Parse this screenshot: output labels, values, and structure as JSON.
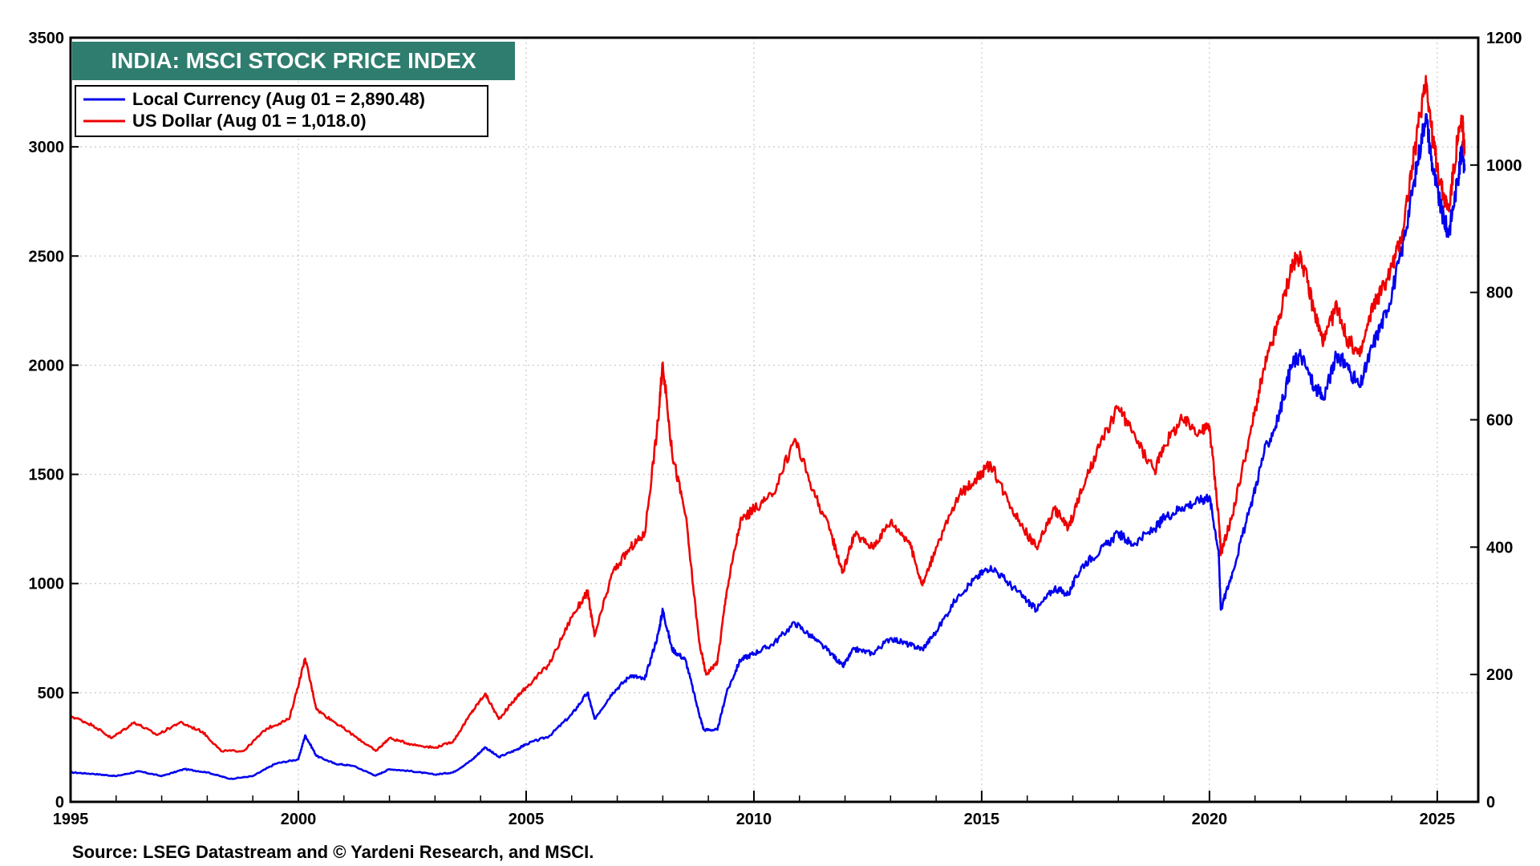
{
  "chart_data": {
    "type": "line",
    "title": "INDIA: MSCI STOCK PRICE INDEX",
    "source": "Source: LSEG Datastream and © Yardeni Research, and MSCI.",
    "title_box_color": "#2e7d6e",
    "x_axis": {
      "range": [
        1995,
        2025.9
      ],
      "ticks": [
        "1995",
        "2000",
        "2005",
        "2010",
        "2015",
        "2020",
        "2025"
      ]
    },
    "y_left": {
      "range": [
        0,
        3500
      ],
      "ticks": [
        "0",
        "500",
        "1000",
        "1500",
        "2000",
        "2500",
        "3000",
        "3500"
      ]
    },
    "y_right": {
      "range": [
        0,
        1200
      ],
      "ticks": [
        "0",
        "200",
        "400",
        "600",
        "800",
        "1000",
        "1200"
      ]
    },
    "grid": true,
    "legend_position": "top-left",
    "series": [
      {
        "name": "Local Currency (Aug 01 = 2,890.48)",
        "axis": "left",
        "color": "#0000ee",
        "points": [
          [
            1995.0,
            135
          ],
          [
            1995.5,
            128
          ],
          [
            1996.0,
            118
          ],
          [
            1996.5,
            140
          ],
          [
            1997.0,
            118
          ],
          [
            1997.5,
            150
          ],
          [
            1998.0,
            135
          ],
          [
            1998.5,
            105
          ],
          [
            1999.0,
            118
          ],
          [
            1999.5,
            175
          ],
          [
            2000.0,
            195
          ],
          [
            2000.15,
            305
          ],
          [
            2000.4,
            210
          ],
          [
            2000.8,
            175
          ],
          [
            2001.2,
            165
          ],
          [
            2001.7,
            120
          ],
          [
            2002.0,
            150
          ],
          [
            2002.5,
            140
          ],
          [
            2003.0,
            125
          ],
          [
            2003.4,
            135
          ],
          [
            2003.8,
            190
          ],
          [
            2004.1,
            250
          ],
          [
            2004.4,
            205
          ],
          [
            2004.8,
            240
          ],
          [
            2005.0,
            265
          ],
          [
            2005.5,
            300
          ],
          [
            2006.0,
            400
          ],
          [
            2006.35,
            500
          ],
          [
            2006.5,
            380
          ],
          [
            2006.9,
            500
          ],
          [
            2007.3,
            580
          ],
          [
            2007.6,
            560
          ],
          [
            2007.9,
            770
          ],
          [
            2008.0,
            880
          ],
          [
            2008.2,
            700
          ],
          [
            2008.5,
            650
          ],
          [
            2008.8,
            400
          ],
          [
            2008.9,
            330
          ],
          [
            2009.2,
            330
          ],
          [
            2009.4,
            500
          ],
          [
            2009.7,
            650
          ],
          [
            2010.0,
            680
          ],
          [
            2010.4,
            720
          ],
          [
            2010.9,
            820
          ],
          [
            2011.3,
            750
          ],
          [
            2011.7,
            680
          ],
          [
            2011.95,
            620
          ],
          [
            2012.2,
            700
          ],
          [
            2012.6,
            680
          ],
          [
            2013.0,
            750
          ],
          [
            2013.4,
            720
          ],
          [
            2013.7,
            700
          ],
          [
            2014.0,
            780
          ],
          [
            2014.5,
            950
          ],
          [
            2014.9,
            1030
          ],
          [
            2015.2,
            1080
          ],
          [
            2015.6,
            1000
          ],
          [
            2016.0,
            920
          ],
          [
            2016.2,
            880
          ],
          [
            2016.6,
            980
          ],
          [
            2016.9,
            950
          ],
          [
            2017.2,
            1080
          ],
          [
            2017.6,
            1150
          ],
          [
            2018.0,
            1230
          ],
          [
            2018.3,
            1180
          ],
          [
            2018.8,
            1250
          ],
          [
            2019.0,
            1300
          ],
          [
            2019.4,
            1350
          ],
          [
            2019.8,
            1380
          ],
          [
            2020.0,
            1400
          ],
          [
            2020.2,
            1150
          ],
          [
            2020.25,
            880
          ],
          [
            2020.5,
            1050
          ],
          [
            2020.9,
            1350
          ],
          [
            2021.2,
            1600
          ],
          [
            2021.5,
            1750
          ],
          [
            2021.8,
            2000
          ],
          [
            2022.0,
            2050
          ],
          [
            2022.3,
            1900
          ],
          [
            2022.5,
            1850
          ],
          [
            2022.8,
            2050
          ],
          [
            2023.0,
            2000
          ],
          [
            2023.3,
            1900
          ],
          [
            2023.6,
            2100
          ],
          [
            2023.9,
            2250
          ],
          [
            2024.2,
            2500
          ],
          [
            2024.5,
            2850
          ],
          [
            2024.75,
            3150
          ],
          [
            2024.9,
            2900
          ],
          [
            2025.1,
            2700
          ],
          [
            2025.25,
            2600
          ],
          [
            2025.45,
            2850
          ],
          [
            2025.55,
            3000
          ],
          [
            2025.6,
            2890
          ]
        ]
      },
      {
        "name": "US Dollar (Aug 01 = 1,018.0)",
        "axis": "right",
        "color": "#ee0000",
        "points": [
          [
            1995.0,
            135
          ],
          [
            1995.5,
            120
          ],
          [
            1995.9,
            100
          ],
          [
            1996.4,
            125
          ],
          [
            1996.9,
            105
          ],
          [
            1997.4,
            125
          ],
          [
            1997.9,
            110
          ],
          [
            1998.3,
            80
          ],
          [
            1998.8,
            80
          ],
          [
            1999.3,
            115
          ],
          [
            1999.8,
            130
          ],
          [
            2000.15,
            225
          ],
          [
            2000.4,
            145
          ],
          [
            2000.8,
            125
          ],
          [
            2001.3,
            100
          ],
          [
            2001.7,
            80
          ],
          [
            2002.0,
            100
          ],
          [
            2002.5,
            90
          ],
          [
            2003.0,
            85
          ],
          [
            2003.4,
            95
          ],
          [
            2003.8,
            140
          ],
          [
            2004.1,
            170
          ],
          [
            2004.4,
            130
          ],
          [
            2004.8,
            165
          ],
          [
            2005.0,
            180
          ],
          [
            2005.5,
            215
          ],
          [
            2006.0,
            290
          ],
          [
            2006.35,
            330
          ],
          [
            2006.5,
            260
          ],
          [
            2006.9,
            360
          ],
          [
            2007.3,
            400
          ],
          [
            2007.6,
            420
          ],
          [
            2007.9,
            600
          ],
          [
            2008.0,
            690
          ],
          [
            2008.2,
            550
          ],
          [
            2008.5,
            450
          ],
          [
            2008.8,
            250
          ],
          [
            2008.95,
            200
          ],
          [
            2009.2,
            220
          ],
          [
            2009.4,
            330
          ],
          [
            2009.7,
            440
          ],
          [
            2010.0,
            460
          ],
          [
            2010.4,
            480
          ],
          [
            2010.9,
            570
          ],
          [
            2011.3,
            490
          ],
          [
            2011.7,
            420
          ],
          [
            2011.95,
            360
          ],
          [
            2012.2,
            420
          ],
          [
            2012.6,
            400
          ],
          [
            2013.0,
            440
          ],
          [
            2013.4,
            410
          ],
          [
            2013.7,
            340
          ],
          [
            2014.0,
            400
          ],
          [
            2014.5,
            480
          ],
          [
            2014.9,
            510
          ],
          [
            2015.2,
            530
          ],
          [
            2015.6,
            470
          ],
          [
            2016.0,
            420
          ],
          [
            2016.2,
            400
          ],
          [
            2016.6,
            460
          ],
          [
            2016.9,
            430
          ],
          [
            2017.2,
            490
          ],
          [
            2017.6,
            560
          ],
          [
            2018.0,
            620
          ],
          [
            2018.3,
            580
          ],
          [
            2018.8,
            520
          ],
          [
            2019.0,
            560
          ],
          [
            2019.4,
            600
          ],
          [
            2019.8,
            580
          ],
          [
            2020.0,
            590
          ],
          [
            2020.2,
            450
          ],
          [
            2020.25,
            390
          ],
          [
            2020.5,
            450
          ],
          [
            2020.9,
            580
          ],
          [
            2021.2,
            680
          ],
          [
            2021.5,
            750
          ],
          [
            2021.8,
            840
          ],
          [
            2022.0,
            860
          ],
          [
            2022.3,
            770
          ],
          [
            2022.5,
            720
          ],
          [
            2022.8,
            780
          ],
          [
            2023.0,
            730
          ],
          [
            2023.3,
            700
          ],
          [
            2023.6,
            780
          ],
          [
            2023.9,
            820
          ],
          [
            2024.2,
            880
          ],
          [
            2024.5,
            1020
          ],
          [
            2024.75,
            1140
          ],
          [
            2024.9,
            1040
          ],
          [
            2025.1,
            960
          ],
          [
            2025.25,
            930
          ],
          [
            2025.45,
            1040
          ],
          [
            2025.55,
            1070
          ],
          [
            2025.6,
            1018
          ]
        ]
      }
    ]
  }
}
